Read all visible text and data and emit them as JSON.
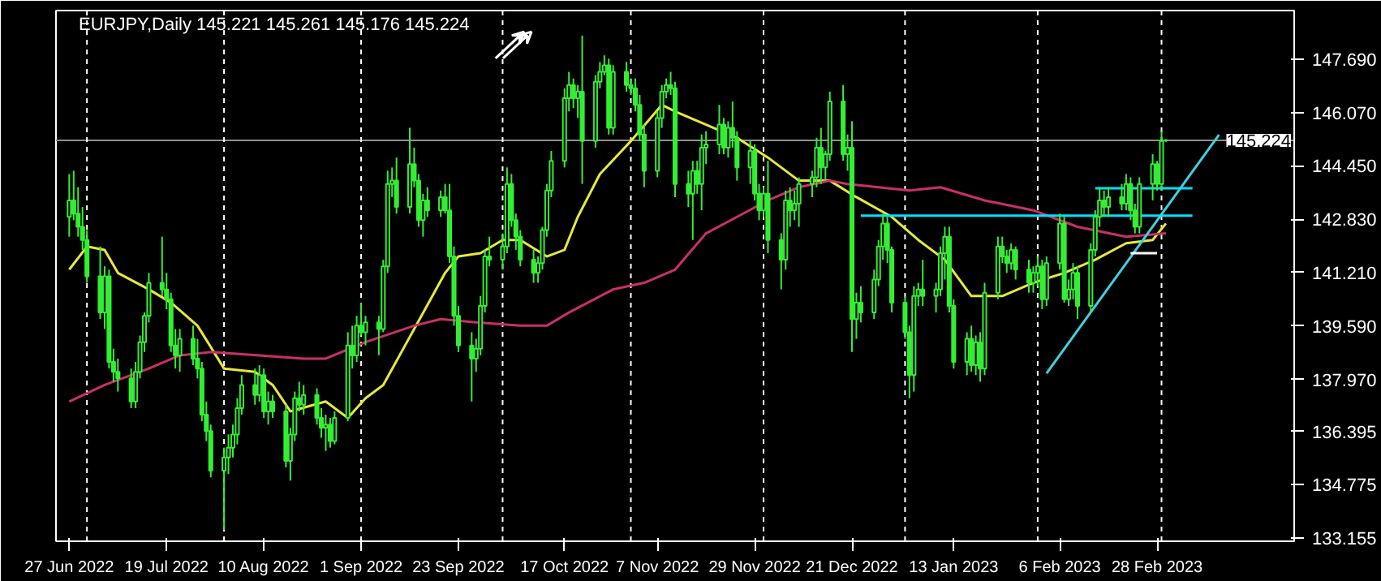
{
  "chart_data": {
    "type": "candlestick",
    "title": "EURJPY,Daily  145.221 145.261 145.176 145.224",
    "color": "#33ee33",
    "x": [
      "2022-06-27",
      "2022-06-28",
      "2022-06-29",
      "2022-06-30",
      "2022-07-01",
      "2022-07-04",
      "2022-07-05",
      "2022-07-06",
      "2022-07-07",
      "2022-07-08",
      "2022-07-11",
      "2022-07-12",
      "2022-07-13",
      "2022-07-14",
      "2022-07-15",
      "2022-07-18",
      "2022-07-19",
      "2022-07-20",
      "2022-07-21",
      "2022-07-22",
      "2022-07-25",
      "2022-07-26",
      "2022-07-27",
      "2022-07-28",
      "2022-07-29",
      "2022-08-01",
      "2022-08-02",
      "2022-08-03",
      "2022-08-04",
      "2022-08-05",
      "2022-08-08",
      "2022-08-09",
      "2022-08-10",
      "2022-08-11",
      "2022-08-12",
      "2022-08-15",
      "2022-08-16",
      "2022-08-17",
      "2022-08-18",
      "2022-08-19",
      "2022-08-22",
      "2022-08-23",
      "2022-08-24",
      "2022-08-25",
      "2022-08-26",
      "2022-08-29",
      "2022-08-30",
      "2022-08-31",
      "2022-09-01",
      "2022-09-02",
      "2022-09-05",
      "2022-09-06",
      "2022-09-07",
      "2022-09-08",
      "2022-09-09",
      "2022-09-12",
      "2022-09-13",
      "2022-09-14",
      "2022-09-15",
      "2022-09-16",
      "2022-09-19",
      "2022-09-20",
      "2022-09-21",
      "2022-09-22",
      "2022-09-23",
      "2022-09-26",
      "2022-09-27",
      "2022-09-28",
      "2022-09-29",
      "2022-09-30",
      "2022-10-03",
      "2022-10-04",
      "2022-10-05",
      "2022-10-06",
      "2022-10-07",
      "2022-10-10",
      "2022-10-11",
      "2022-10-12",
      "2022-10-13",
      "2022-10-14",
      "2022-10-17",
      "2022-10-18",
      "2022-10-19",
      "2022-10-20",
      "2022-10-21",
      "2022-10-24",
      "2022-10-25",
      "2022-10-26",
      "2022-10-27",
      "2022-10-28",
      "2022-10-31",
      "2022-11-01",
      "2022-11-02",
      "2022-11-03",
      "2022-11-04",
      "2022-11-07",
      "2022-11-08",
      "2022-11-09",
      "2022-11-10",
      "2022-11-11",
      "2022-11-14",
      "2022-11-15",
      "2022-11-16",
      "2022-11-17",
      "2022-11-18",
      "2022-11-21",
      "2022-11-22",
      "2022-11-23",
      "2022-11-24",
      "2022-11-25",
      "2022-11-28",
      "2022-11-29",
      "2022-11-30",
      "2022-12-01",
      "2022-12-02",
      "2022-12-05",
      "2022-12-06",
      "2022-12-07",
      "2022-12-08",
      "2022-12-09",
      "2022-12-12",
      "2022-12-13",
      "2022-12-14",
      "2022-12-15",
      "2022-12-16",
      "2022-12-19",
      "2022-12-20",
      "2022-12-21",
      "2022-12-22",
      "2022-12-23",
      "2022-12-26",
      "2022-12-27",
      "2022-12-28",
      "2022-12-29",
      "2022-12-30",
      "2023-01-02",
      "2023-01-03",
      "2023-01-04",
      "2023-01-05",
      "2023-01-06",
      "2023-01-09",
      "2023-01-10",
      "2023-01-11",
      "2023-01-12",
      "2023-01-13",
      "2023-01-16",
      "2023-01-17",
      "2023-01-18",
      "2023-01-19",
      "2023-01-20",
      "2023-01-23",
      "2023-01-24",
      "2023-01-25",
      "2023-01-26",
      "2023-01-27",
      "2023-01-30",
      "2023-01-31",
      "2023-02-01",
      "2023-02-02",
      "2023-02-03",
      "2023-02-06",
      "2023-02-07",
      "2023-02-08",
      "2023-02-09",
      "2023-02-10",
      "2023-02-13",
      "2023-02-14",
      "2023-02-15",
      "2023-02-16",
      "2023-02-17",
      "2023-02-20",
      "2023-02-21",
      "2023-02-22",
      "2023-02-23",
      "2023-02-24",
      "2023-02-27",
      "2023-02-28",
      "2023-03-01",
      "2023-03-02"
    ],
    "ohlc": [
      [
        142.9,
        144.2,
        142.3,
        143.4
      ],
      [
        143.4,
        144.3,
        142.8,
        143.0
      ],
      [
        143.0,
        143.8,
        142.3,
        142.6
      ],
      [
        142.6,
        143.2,
        141.9,
        142.2
      ],
      [
        142.2,
        142.5,
        140.9,
        141.1
      ],
      [
        141.1,
        142.0,
        139.8,
        140.0
      ],
      [
        140.0,
        141.4,
        139.5,
        141.1
      ],
      [
        141.1,
        141.3,
        138.3,
        138.5
      ],
      [
        138.5,
        138.9,
        137.9,
        138.2
      ],
      [
        138.2,
        138.6,
        137.6,
        138.0
      ],
      [
        138.0,
        138.3,
        137.1,
        137.3
      ],
      [
        137.3,
        138.5,
        137.1,
        138.2
      ],
      [
        138.2,
        139.3,
        138.0,
        139.1
      ],
      [
        139.1,
        140.0,
        138.8,
        139.9
      ],
      [
        139.9,
        141.2,
        139.7,
        140.9
      ],
      [
        140.9,
        142.3,
        140.5,
        140.7
      ],
      [
        140.7,
        141.2,
        140.1,
        140.4
      ],
      [
        140.4,
        140.6,
        138.8,
        139.0
      ],
      [
        139.0,
        139.5,
        138.3,
        138.7
      ],
      [
        138.7,
        139.5,
        138.2,
        139.2
      ],
      [
        139.2,
        139.6,
        138.4,
        138.6
      ],
      [
        138.6,
        139.2,
        138.0,
        138.3
      ],
      [
        138.3,
        138.5,
        136.7,
        136.9
      ],
      [
        136.9,
        137.3,
        136.1,
        136.4
      ],
      [
        136.4,
        136.6,
        135.0,
        135.2
      ],
      [
        135.2,
        135.9,
        133.4,
        135.6
      ],
      [
        135.6,
        136.3,
        135.1,
        135.9
      ],
      [
        135.9,
        136.6,
        135.6,
        136.3
      ],
      [
        136.3,
        137.4,
        136.0,
        137.1
      ],
      [
        137.1,
        138.1,
        136.9,
        137.8
      ],
      [
        137.8,
        138.3,
        137.2,
        137.5
      ],
      [
        137.5,
        138.4,
        137.3,
        138.1
      ],
      [
        138.1,
        138.3,
        136.8,
        137.0
      ],
      [
        137.0,
        137.6,
        136.6,
        137.3
      ],
      [
        137.3,
        137.5,
        136.8,
        137.0
      ],
      [
        137.0,
        137.2,
        135.3,
        135.5
      ],
      [
        135.5,
        136.5,
        134.9,
        136.3
      ],
      [
        136.3,
        137.6,
        136.1,
        137.4
      ],
      [
        137.4,
        137.9,
        137.0,
        137.2
      ],
      [
        137.2,
        137.8,
        136.9,
        137.5
      ],
      [
        137.5,
        137.7,
        136.6,
        136.8
      ],
      [
        136.8,
        137.1,
        136.2,
        136.5
      ],
      [
        136.5,
        136.9,
        135.8,
        136.6
      ],
      [
        136.6,
        136.8,
        135.9,
        136.1
      ],
      [
        136.1,
        137.0,
        136.0,
        136.8
      ],
      [
        136.8,
        139.4,
        136.7,
        139.0
      ],
      [
        139.0,
        139.6,
        138.3,
        138.7
      ],
      [
        138.7,
        139.9,
        138.5,
        139.6
      ],
      [
        139.6,
        140.3,
        139.3,
        139.4
      ],
      [
        139.4,
        139.9,
        139.0,
        139.7
      ],
      [
        139.7,
        139.9,
        138.7,
        139.5
      ],
      [
        139.5,
        141.6,
        139.4,
        141.4
      ],
      [
        141.4,
        144.3,
        141.2,
        143.9
      ],
      [
        143.9,
        144.4,
        143.5,
        144.0
      ],
      [
        144.0,
        144.7,
        143.0,
        143.2
      ],
      [
        143.2,
        145.6,
        143.0,
        144.5
      ],
      [
        144.5,
        145.0,
        143.8,
        144.0
      ],
      [
        144.0,
        144.2,
        142.6,
        142.8
      ],
      [
        142.8,
        143.6,
        142.3,
        143.4
      ],
      [
        143.4,
        143.8,
        142.9,
        143.1
      ],
      [
        143.1,
        143.7,
        142.9,
        143.5
      ],
      [
        143.5,
        143.9,
        143.0,
        143.1
      ],
      [
        143.1,
        143.9,
        141.5,
        141.7
      ],
      [
        141.7,
        142.0,
        139.6,
        139.9
      ],
      [
        139.9,
        140.2,
        138.8,
        139.0
      ],
      [
        139.0,
        139.4,
        137.3,
        138.6
      ],
      [
        138.6,
        139.2,
        138.2,
        138.9
      ],
      [
        138.9,
        140.5,
        138.7,
        140.2
      ],
      [
        140.2,
        141.9,
        140.0,
        141.7
      ],
      [
        141.7,
        142.3,
        141.4,
        141.6
      ],
      [
        141.6,
        142.4,
        141.3,
        142.0
      ],
      [
        142.0,
        144.4,
        141.8,
        143.9
      ],
      [
        143.9,
        144.2,
        142.6,
        142.8
      ],
      [
        142.8,
        143.0,
        141.9,
        142.3
      ],
      [
        142.3,
        142.5,
        141.4,
        141.6
      ],
      [
        141.6,
        141.9,
        140.9,
        141.2
      ],
      [
        141.2,
        141.7,
        140.9,
        141.5
      ],
      [
        141.5,
        142.6,
        141.3,
        142.5
      ],
      [
        142.5,
        143.9,
        142.3,
        143.7
      ],
      [
        143.7,
        144.9,
        143.5,
        144.6
      ],
      [
        144.6,
        146.8,
        144.4,
        146.5
      ],
      [
        146.5,
        147.3,
        146.1,
        146.9
      ],
      [
        146.9,
        147.1,
        146.2,
        146.5
      ],
      [
        146.5,
        146.9,
        145.9,
        146.7
      ],
      [
        146.7,
        148.4,
        143.9,
        145.2
      ],
      [
        145.2,
        147.2,
        145.0,
        147.0
      ],
      [
        147.0,
        147.6,
        146.8,
        147.3
      ],
      [
        147.3,
        147.8,
        147.2,
        147.5
      ],
      [
        147.5,
        147.7,
        145.4,
        145.6
      ],
      [
        145.6,
        147.5,
        145.4,
        147.3
      ],
      [
        147.3,
        147.6,
        146.7,
        146.9
      ],
      [
        146.9,
        147.1,
        146.6,
        146.8
      ],
      [
        146.8,
        147.1,
        146.1,
        146.3
      ],
      [
        146.3,
        146.6,
        145.2,
        145.4
      ],
      [
        145.4,
        145.7,
        143.8,
        144.3
      ],
      [
        144.3,
        146.1,
        144.1,
        145.9
      ],
      [
        145.9,
        146.9,
        145.6,
        146.7
      ],
      [
        146.7,
        147.1,
        146.5,
        146.9
      ],
      [
        146.9,
        147.3,
        146.6,
        146.8
      ],
      [
        146.8,
        147.0,
        143.5,
        143.9
      ],
      [
        143.9,
        144.3,
        143.2,
        143.6
      ],
      [
        143.6,
        144.6,
        142.2,
        144.3
      ],
      [
        144.3,
        144.6,
        143.6,
        143.9
      ],
      [
        143.9,
        145.4,
        143.1,
        145.0
      ],
      [
        145.0,
        145.5,
        144.5,
        145.1
      ],
      [
        145.1,
        146.3,
        144.8,
        145.7
      ],
      [
        145.7,
        145.9,
        144.8,
        145.0
      ],
      [
        145.0,
        145.8,
        144.7,
        145.6
      ],
      [
        145.6,
        146.4,
        145.0,
        145.3
      ],
      [
        145.3,
        145.5,
        144.0,
        144.4
      ],
      [
        144.4,
        145.2,
        143.9,
        144.9
      ],
      [
        144.9,
        145.1,
        143.4,
        143.6
      ],
      [
        143.6,
        143.9,
        142.8,
        143.1
      ],
      [
        143.1,
        143.8,
        142.9,
        143.6
      ],
      [
        143.6,
        144.6,
        141.8,
        142.2
      ],
      [
        142.2,
        142.4,
        140.7,
        141.6
      ],
      [
        141.6,
        143.7,
        141.3,
        143.4
      ],
      [
        143.4,
        143.8,
        142.6,
        143.1
      ],
      [
        143.1,
        143.7,
        142.8,
        143.3
      ],
      [
        143.3,
        144.1,
        142.6,
        143.9
      ],
      [
        143.9,
        144.3,
        143.5,
        144.1
      ],
      [
        144.1,
        145.3,
        143.8,
        145.0
      ],
      [
        145.0,
        145.6,
        143.9,
        144.4
      ],
      [
        144.4,
        144.9,
        144.0,
        144.8
      ],
      [
        144.8,
        146.7,
        144.6,
        146.4
      ],
      [
        146.4,
        146.9,
        144.6,
        144.8
      ],
      [
        144.8,
        145.4,
        144.3,
        145.0
      ],
      [
        145.0,
        145.8,
        138.8,
        139.8
      ],
      [
        139.8,
        140.6,
        139.2,
        140.3
      ],
      [
        140.3,
        140.8,
        139.7,
        140.0
      ],
      [
        140.0,
        141.3,
        139.8,
        141.0
      ],
      [
        141.0,
        142.2,
        140.8,
        142.0
      ],
      [
        142.0,
        143.0,
        141.6,
        142.7
      ],
      [
        142.7,
        142.9,
        141.5,
        141.9
      ],
      [
        141.9,
        142.0,
        140.0,
        140.3
      ],
      [
        140.3,
        140.5,
        139.2,
        139.4
      ],
      [
        139.4,
        139.6,
        137.4,
        138.1
      ],
      [
        138.1,
        140.8,
        137.6,
        140.5
      ],
      [
        140.5,
        140.9,
        140.2,
        140.7
      ],
      [
        140.7,
        141.6,
        140.2,
        140.5
      ],
      [
        140.5,
        140.9,
        140.0,
        140.7
      ],
      [
        140.7,
        142.0,
        140.5,
        141.8
      ],
      [
        141.8,
        142.6,
        141.0,
        142.3
      ],
      [
        142.3,
        142.6,
        140.0,
        140.2
      ],
      [
        140.2,
        140.4,
        138.3,
        138.5
      ],
      [
        138.5,
        139.4,
        138.1,
        139.2
      ],
      [
        139.2,
        139.6,
        138.2,
        138.4
      ],
      [
        138.4,
        139.3,
        138.1,
        139.1
      ],
      [
        139.1,
        139.4,
        137.9,
        138.3
      ],
      [
        138.3,
        140.9,
        138.1,
        140.6
      ],
      [
        140.6,
        142.3,
        140.4,
        142.0
      ],
      [
        142.0,
        142.3,
        141.5,
        141.7
      ],
      [
        141.7,
        141.9,
        141.2,
        141.5
      ],
      [
        141.5,
        142.1,
        141.3,
        141.9
      ],
      [
        141.9,
        142.0,
        141.0,
        141.3
      ],
      [
        141.3,
        141.6,
        140.6,
        140.9
      ],
      [
        140.9,
        141.4,
        140.6,
        141.2
      ],
      [
        141.2,
        141.7,
        140.8,
        141.4
      ],
      [
        141.4,
        141.6,
        140.1,
        140.4
      ],
      [
        140.4,
        141.7,
        140.2,
        141.5
      ],
      [
        141.5,
        143.0,
        141.3,
        142.7
      ],
      [
        142.7,
        142.9,
        140.3,
        140.4
      ],
      [
        140.4,
        141.0,
        140.2,
        140.7
      ],
      [
        140.7,
        141.5,
        140.4,
        141.2
      ],
      [
        141.2,
        141.4,
        139.8,
        140.2
      ],
      [
        140.2,
        142.1,
        140.0,
        141.9
      ],
      [
        141.9,
        143.1,
        141.7,
        142.9
      ],
      [
        142.9,
        143.8,
        142.6,
        143.4
      ],
      [
        143.4,
        143.7,
        142.9,
        143.2
      ],
      [
        143.2,
        143.8,
        142.9,
        143.5
      ],
      [
        143.5,
        143.9,
        143.1,
        143.3
      ],
      [
        143.3,
        144.2,
        143.1,
        143.9
      ],
      [
        143.9,
        144.1,
        142.8,
        143.1
      ],
      [
        143.1,
        143.3,
        142.4,
        142.6
      ],
      [
        142.6,
        144.1,
        142.4,
        143.9
      ],
      [
        143.9,
        144.8,
        143.4,
        144.5
      ],
      [
        144.5,
        144.6,
        143.7,
        143.9
      ],
      [
        143.9,
        145.5,
        143.7,
        145.2
      ],
      [
        145.221,
        145.261,
        145.176,
        145.224
      ]
    ],
    "series": [
      {
        "type": "line",
        "color": "#e8e83a",
        "x": [
          "2022-06-27",
          "2022-07-01",
          "2022-07-05",
          "2022-07-08",
          "2022-07-15",
          "2022-07-20",
          "2022-07-26",
          "2022-08-01",
          "2022-08-08",
          "2022-08-12",
          "2022-08-16",
          "2022-08-24",
          "2022-08-29",
          "2022-09-02",
          "2022-09-06",
          "2022-09-13",
          "2022-09-20",
          "2022-09-23",
          "2022-09-28",
          "2022-10-03",
          "2022-10-07",
          "2022-10-13",
          "2022-10-17",
          "2022-10-20",
          "2022-10-25",
          "2022-11-01",
          "2022-11-08",
          "2022-11-11",
          "2022-11-18",
          "2022-11-25",
          "2022-12-02",
          "2022-12-09",
          "2022-12-16",
          "2022-12-22",
          "2022-12-30",
          "2023-01-05",
          "2023-01-11",
          "2023-01-17",
          "2023-01-24",
          "2023-01-31",
          "2023-02-07",
          "2023-02-14",
          "2023-02-21",
          "2023-02-27",
          "2023-03-02"
        ],
        "values": [
          141.3,
          142.0,
          141.9,
          141.2,
          140.7,
          140.3,
          139.6,
          138.3,
          138.2,
          137.8,
          137.0,
          137.3,
          136.8,
          137.4,
          137.8,
          139.5,
          141.2,
          141.7,
          141.8,
          142.2,
          142.2,
          141.7,
          141.9,
          142.9,
          144.2,
          145.2,
          146.3,
          146.1,
          145.7,
          145.3,
          144.7,
          144.0,
          144.0,
          143.5,
          142.9,
          142.2,
          141.6,
          140.5,
          140.5,
          140.9,
          141.2,
          141.6,
          142.1,
          142.2,
          142.7
        ]
      },
      {
        "type": "line",
        "color": "#c8306a",
        "x": [
          "2022-06-27",
          "2022-07-05",
          "2022-07-15",
          "2022-07-22",
          "2022-07-29",
          "2022-08-09",
          "2022-08-19",
          "2022-08-24",
          "2022-09-02",
          "2022-09-13",
          "2022-09-19",
          "2022-09-27",
          "2022-10-07",
          "2022-10-13",
          "2022-10-18",
          "2022-10-28",
          "2022-11-04",
          "2022-11-11",
          "2022-11-18",
          "2022-11-25",
          "2022-12-02",
          "2022-12-09",
          "2022-12-16",
          "2022-12-20",
          "2022-12-27",
          "2023-01-03",
          "2023-01-10",
          "2023-01-20",
          "2023-01-31",
          "2023-02-10",
          "2023-02-21",
          "2023-03-02"
        ],
        "values": [
          137.3,
          137.8,
          138.3,
          138.7,
          138.8,
          138.7,
          138.6,
          138.6,
          139.1,
          139.6,
          139.8,
          139.7,
          139.6,
          139.6,
          140.0,
          140.7,
          140.9,
          141.3,
          142.4,
          142.9,
          143.4,
          143.8,
          144.0,
          143.9,
          143.8,
          143.7,
          143.8,
          143.4,
          143.1,
          142.6,
          142.3,
          142.4
        ]
      },
      {
        "type": "line",
        "color": "#00e0ff",
        "x": [
          "2022-12-23",
          "2023-03-08"
        ],
        "values": [
          142.94,
          142.94
        ]
      },
      {
        "type": "line",
        "color": "#00e0ff",
        "x": [
          "2023-02-14",
          "2023-03-08"
        ],
        "values": [
          143.77,
          143.77
        ]
      },
      {
        "type": "line",
        "color": "#40d0e0",
        "x": [
          "2023-02-03",
          "2023-03-14"
        ],
        "values": [
          138.15,
          145.39
        ]
      },
      {
        "type": "line",
        "color": "#ffffff",
        "x": [
          "2023-02-22",
          "2023-02-28"
        ],
        "values": [
          141.8,
          141.8
        ]
      }
    ],
    "xlim": [
      "2022-06-24",
      "2023-03-31"
    ],
    "ylim": [
      133.06,
      149.16
    ],
    "xticks": [
      {
        "value": "2022-06-27",
        "label": "27 Jun 2022"
      },
      {
        "value": "2022-07-19",
        "label": "19 Jul 2022"
      },
      {
        "value": "2022-08-10",
        "label": "10 Aug 2022"
      },
      {
        "value": "2022-09-01",
        "label": "1 Sep 2022"
      },
      {
        "value": "2022-09-23",
        "label": "23 Sep 2022"
      },
      {
        "value": "2022-10-17",
        "label": "17 Oct 2022"
      },
      {
        "value": "2022-11-07",
        "label": "7 Nov 2022"
      },
      {
        "value": "2022-11-29",
        "label": "29 Nov 2022"
      },
      {
        "value": "2022-12-21",
        "label": "21 Dec 2022"
      },
      {
        "value": "2023-01-13",
        "label": "13 Jan 2023"
      },
      {
        "value": "2023-02-06",
        "label": "6 Feb 2023"
      },
      {
        "value": "2023-02-28",
        "label": "28 Feb 2023"
      }
    ],
    "yticks": [
      {
        "value": 147.69,
        "label": "147.690"
      },
      {
        "value": 146.07,
        "label": "146.070"
      },
      {
        "value": 144.45,
        "label": "144.450"
      },
      {
        "value": 142.83,
        "label": "142.830"
      },
      {
        "value": 141.21,
        "label": "141.210"
      },
      {
        "value": 139.59,
        "label": "139.590"
      },
      {
        "value": 137.97,
        "label": "137.970"
      },
      {
        "value": 136.395,
        "label": "136.395"
      },
      {
        "value": 134.775,
        "label": "134.775"
      },
      {
        "value": 133.155,
        "label": "133.155"
      }
    ],
    "ref_lines": [
      {
        "axis": "y",
        "value": 145.224,
        "label": "145.224",
        "color": "#909090",
        "line_style": "solid"
      },
      {
        "axis": "x",
        "value": "2022-07-01",
        "color": "#ffffff",
        "line_style": "dashed"
      },
      {
        "axis": "x",
        "value": "2022-08-01",
        "color": "#ffffff",
        "line_style": "dashed"
      },
      {
        "axis": "x",
        "value": "2022-09-01",
        "color": "#ffffff",
        "line_style": "dashed"
      },
      {
        "axis": "x",
        "value": "2022-10-03",
        "color": "#ffffff",
        "line_style": "dashed"
      },
      {
        "axis": "x",
        "value": "2022-11-01",
        "color": "#ffffff",
        "line_style": "dashed"
      },
      {
        "axis": "x",
        "value": "2022-12-01",
        "color": "#ffffff",
        "line_style": "dashed"
      },
      {
        "axis": "x",
        "value": "2023-01-02",
        "color": "#ffffff",
        "line_style": "dashed"
      },
      {
        "axis": "x",
        "value": "2023-02-01",
        "color": "#ffffff",
        "line_style": "dashed"
      },
      {
        "axis": "x",
        "value": "2023-03-01",
        "color": "#ffffff",
        "line_style": "dashed"
      }
    ],
    "grid": false
  }
}
